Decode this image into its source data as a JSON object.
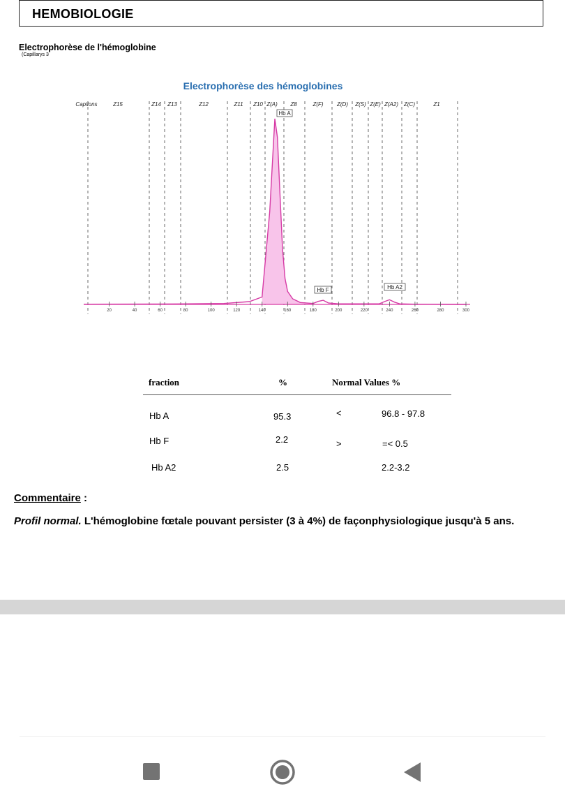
{
  "header": {
    "title": "HEMOBIOLOGIE"
  },
  "section": {
    "title": "Electrophorèse de l'hémoglobine",
    "subtitle": "(Capillarys 3"
  },
  "chart_data": {
    "type": "line",
    "title": "Electrophorèse des hémoglobines",
    "x_ticks": [
      20,
      40,
      60,
      80,
      100,
      120,
      140,
      160,
      180,
      200,
      220,
      240,
      260,
      280,
      300
    ],
    "xlim": [
      0,
      300
    ],
    "zone_labels": [
      "Capilons",
      "Z15",
      "Z14",
      "Z13",
      "Z12",
      "Z11",
      "Z10",
      "Z(A)",
      "Z8",
      "Z(F)",
      "Z(D)",
      "Z(S)",
      "Z(E)",
      "Z(A2)",
      "Z(C)",
      "Z1"
    ],
    "peak_labels": [
      "Hb A",
      "Hb F",
      "Hb A2"
    ],
    "series": [
      {
        "x": [
          0,
          60,
          110,
          130,
          140,
          146,
          150,
          152,
          154,
          156,
          158,
          160,
          164,
          170,
          180,
          184,
          188,
          192,
          200,
          232,
          236,
          240,
          244,
          248,
          260,
          300
        ],
        "y": [
          0.1,
          0.2,
          0.5,
          1.5,
          4,
          50,
          100,
          90,
          60,
          30,
          14,
          7,
          3,
          1,
          0.5,
          1.6,
          2.2,
          0.8,
          0.3,
          0.3,
          1.5,
          2.5,
          1.2,
          0.3,
          0.1,
          0.0
        ]
      }
    ],
    "color": "#d63aa5",
    "fill": "#f8c4ea",
    "title_color": "#2a6fb0"
  },
  "table": {
    "headers": {
      "fraction": "fraction",
      "percent": "%",
      "normal": "Normal Values %"
    },
    "rows": [
      {
        "name": "Hb A",
        "percent": "95.3",
        "flag": "<",
        "normal": "96.8 - 97.8"
      },
      {
        "name": "Hb F",
        "percent": "2.2",
        "flag": ">",
        "normal": "=< 0.5"
      },
      {
        "name": "Hb A2",
        "percent": "2.5",
        "flag": "",
        "normal": "2.2-3.2"
      }
    ]
  },
  "comment": {
    "label": "Commentaire",
    "colon": ":",
    "lead": "Profil normal.",
    "text": " L'hémoglobine fœtale pouvant persister (3 à 4%) de façonphysiologique jusqu'à 5 ans."
  },
  "nav": {
    "icons": [
      "square-icon",
      "home-circle-icon",
      "back-triangle-icon"
    ]
  }
}
